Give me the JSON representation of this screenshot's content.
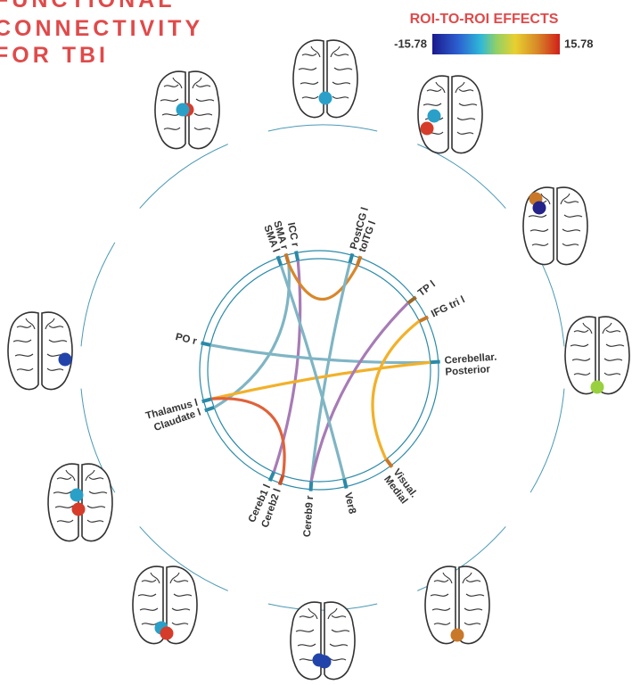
{
  "title": {
    "lines": [
      "FUNCTIONAL",
      "CONNECTIVITY",
      "FOR TBI"
    ]
  },
  "legend": {
    "title": "ROI-TO-ROI EFFECTS",
    "min": -15.78,
    "max": 15.78
  },
  "nodes": [
    {
      "lines": [
        "SMA l"
      ]
    },
    {
      "lines": [
        "SMA r"
      ]
    },
    {
      "lines": [
        "ICC r"
      ]
    },
    {
      "lines": [
        "PostCG l"
      ]
    },
    {
      "lines": [
        "toITG l"
      ]
    },
    {
      "lines": [
        "TP l"
      ]
    },
    {
      "lines": [
        "IFG tri l"
      ]
    },
    {
      "lines": [
        "PO r"
      ]
    },
    {
      "lines": [
        "Cerebellar.",
        "Posterior"
      ]
    },
    {
      "lines": [
        "Thalamus l"
      ]
    },
    {
      "lines": [
        "Claudate l"
      ]
    },
    {
      "lines": [
        "Cereb1 l"
      ]
    },
    {
      "lines": [
        "Cereb2 l"
      ]
    },
    {
      "lines": [
        "Cereb9 r"
      ]
    },
    {
      "lines": [
        "Ver8"
      ]
    },
    {
      "lines": [
        "Visual.",
        "Medial"
      ]
    }
  ]
}
